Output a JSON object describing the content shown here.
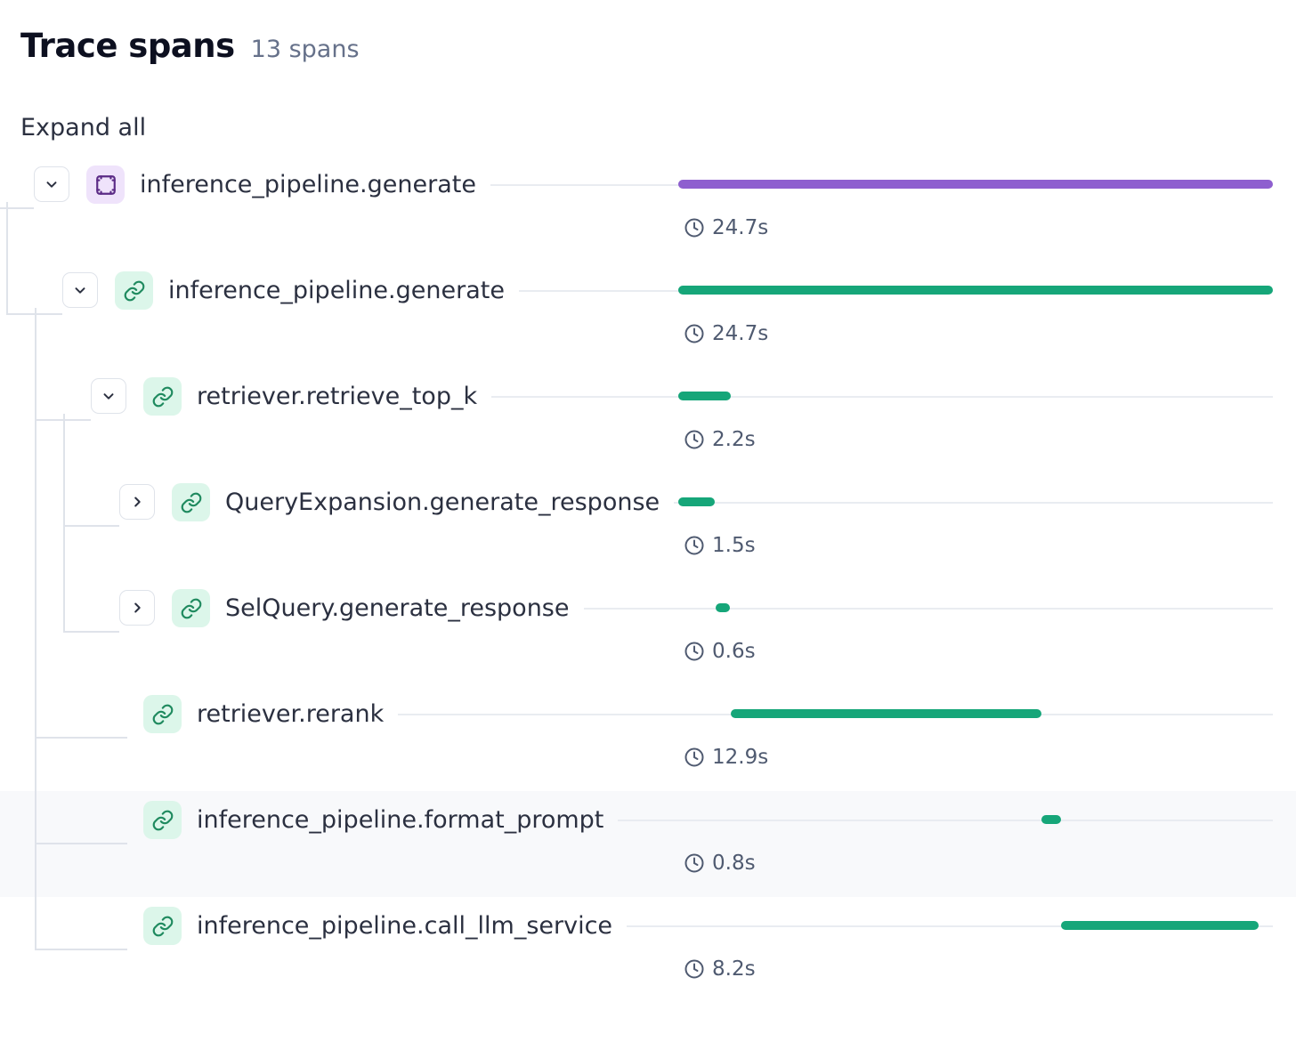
{
  "header": {
    "title": "Trace spans",
    "count": "13 spans"
  },
  "controls": {
    "expand_all": "Expand all"
  },
  "timeline": {
    "total_seconds": 24.7
  },
  "colors": {
    "pipeline_bar": "#8e5fcf",
    "span_bar": "#16a679",
    "pipeline_icon": "#5b2b86",
    "link_icon": "#1f8a5f"
  },
  "spans": [
    {
      "name": "inference_pipeline.generate",
      "duration": "24.7s",
      "depth": 0,
      "icon": "pipeline-icon",
      "kind": "pipeline",
      "toggle": "collapse",
      "start": 0,
      "length": 24.7,
      "highlight": false
    },
    {
      "name": "inference_pipeline.generate",
      "duration": "24.7s",
      "depth": 1,
      "icon": "link-icon",
      "kind": "link",
      "toggle": "collapse",
      "start": 0,
      "length": 24.7,
      "highlight": false
    },
    {
      "name": "retriever.retrieve_top_k",
      "duration": "2.2s",
      "depth": 2,
      "icon": "link-icon",
      "kind": "link",
      "toggle": "collapse",
      "start": 0,
      "length": 2.2,
      "highlight": false
    },
    {
      "name": "QueryExpansion.generate_response",
      "duration": "1.5s",
      "depth": 3,
      "icon": "link-icon",
      "kind": "link",
      "toggle": "expand",
      "start": 0,
      "length": 1.5,
      "highlight": false
    },
    {
      "name": "SelQuery.generate_response",
      "duration": "0.6s",
      "depth": 3,
      "icon": "link-icon",
      "kind": "link",
      "toggle": "expand",
      "start": 1.55,
      "length": 0.6,
      "highlight": false
    },
    {
      "name": "retriever.rerank",
      "duration": "12.9s",
      "depth": 2,
      "icon": "link-icon",
      "kind": "link",
      "toggle": "none",
      "start": 2.2,
      "length": 12.9,
      "highlight": false
    },
    {
      "name": "inference_pipeline.format_prompt",
      "duration": "0.8s",
      "depth": 2,
      "icon": "link-icon",
      "kind": "link",
      "toggle": "none",
      "start": 15.1,
      "length": 0.8,
      "highlight": true
    },
    {
      "name": "inference_pipeline.call_llm_service",
      "duration": "8.2s",
      "depth": 2,
      "icon": "link-icon",
      "kind": "link",
      "toggle": "none",
      "start": 15.9,
      "length": 8.2,
      "highlight": false
    }
  ]
}
